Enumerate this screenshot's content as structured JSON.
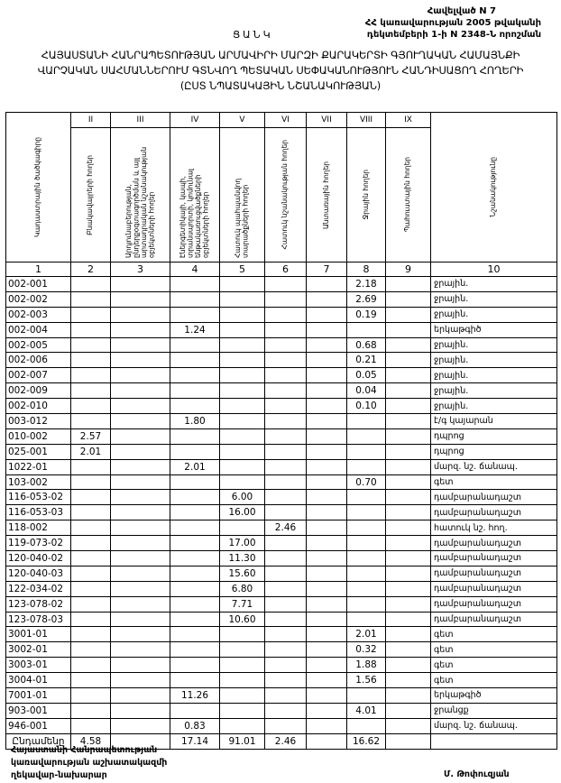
{
  "annex": {
    "line1": "Հավելված N 7",
    "line2": "ՀՀ կառավարության 2005 թվականի",
    "line3": "դեկտեմբերի 1-ի N 2348-Ն որոշման"
  },
  "heading": "ՑԱՆԿ",
  "title": {
    "line1": "ՀԱՅԱՍՏԱՆԻ ՀԱՆՐԱՊԵՏՈՒԹՅԱՆ ԱՐՄԱՎԻՐԻ ՄԱՐԶԻ ՔԱՐԱԿԵՐՏԻ ԳՅՈՒՂԱԿԱՆ ՀԱՄԱՅՆՔԻ",
    "line2": "ՎԱՐՉԱԿԱՆ ՍԱՀՄԱՆՆԵՐՈՒՄ ԳՏՆՎՈՂ ՊԵՏԱԿԱՆ ՍԵՓԱԿԱՆՈՒԹՅՈՒՆ ՀԱՆԴԻՍԱՑՈՂ ՀՈՂԵՐԻ",
    "line3": "(ԸՍՏ ՆՊԱՏԱԿԱՅԻՆ ՆՇԱՆԱԿՈՒԹՅԱՆ)"
  },
  "table": {
    "roman": [
      "",
      "II",
      "III",
      "IV",
      "V",
      "VI",
      "VII",
      "VIII",
      "IX",
      ""
    ],
    "headers": [
      "Կադաստրային ծածկագիրը",
      "Բնակավայրերի հողեր",
      "Արդյունաբերության, ընդերքօգտագործման և այլ արտադրական նշանակության օբյեկտների հողեր",
      "Էներգետիկայի, կապի, տրանսպորտի, կոմունալ ենթակառուցվածքների օբյեկտների հողեր",
      "Հատուկ պահպանվող տարածքների հողեր",
      "Հատուկ նշանակության հողեր",
      "Անտառային հողեր",
      "Ջրային հողեր",
      "Պահուստային հողեր",
      "Նշանակությունը"
    ],
    "numbers": [
      "1",
      "2",
      "3",
      "4",
      "5",
      "6",
      "7",
      "8",
      "9",
      "10"
    ],
    "rows": [
      {
        "code": "002-001",
        "values": [
          "",
          "",
          "",
          "",
          "",
          "",
          "2.18",
          ""
        ],
        "purpose": "ջրային."
      },
      {
        "code": "002-002",
        "values": [
          "",
          "",
          "",
          "",
          "",
          "",
          "2.69",
          ""
        ],
        "purpose": "ջրային."
      },
      {
        "code": "002-003",
        "values": [
          "",
          "",
          "",
          "",
          "",
          "",
          "0.19",
          ""
        ],
        "purpose": "ջրային."
      },
      {
        "code": "002-004",
        "values": [
          "",
          "",
          "1.24",
          "",
          "",
          "",
          "",
          ""
        ],
        "purpose": "երկաթգիծ"
      },
      {
        "code": "002-005",
        "values": [
          "",
          "",
          "",
          "",
          "",
          "",
          "0.68",
          ""
        ],
        "purpose": "ջրային."
      },
      {
        "code": "002-006",
        "values": [
          "",
          "",
          "",
          "",
          "",
          "",
          "0.21",
          ""
        ],
        "purpose": "ջրային."
      },
      {
        "code": "002-007",
        "values": [
          "",
          "",
          "",
          "",
          "",
          "",
          "0.05",
          ""
        ],
        "purpose": "ջրային."
      },
      {
        "code": "002-009",
        "values": [
          "",
          "",
          "",
          "",
          "",
          "",
          "0.04",
          ""
        ],
        "purpose": "ջրային."
      },
      {
        "code": "002-010",
        "values": [
          "",
          "",
          "",
          "",
          "",
          "",
          "0.10",
          ""
        ],
        "purpose": "ջրային."
      },
      {
        "code": "003-012",
        "values": [
          "",
          "",
          "1.80",
          "",
          "",
          "",
          "",
          ""
        ],
        "purpose": "է/գ կայարան"
      },
      {
        "code": "010-002",
        "values": [
          "2.57",
          "",
          "",
          "",
          "",
          "",
          "",
          ""
        ],
        "purpose": "դպրոց"
      },
      {
        "code": "025-001",
        "values": [
          "2.01",
          "",
          "",
          "",
          "",
          "",
          "",
          ""
        ],
        "purpose": "դպրոց"
      },
      {
        "code": "1022-01",
        "values": [
          "",
          "",
          "2.01",
          "",
          "",
          "",
          "",
          ""
        ],
        "purpose": "մարզ. նշ. ճանապ."
      },
      {
        "code": "103-002",
        "values": [
          "",
          "",
          "",
          "",
          "",
          "",
          "0.70",
          ""
        ],
        "purpose": "գետ"
      },
      {
        "code": "116-053-02",
        "values": [
          "",
          "",
          "",
          "6.00",
          "",
          "",
          "",
          ""
        ],
        "purpose": "դամբարանադաշտ"
      },
      {
        "code": "116-053-03",
        "values": [
          "",
          "",
          "",
          "16.00",
          "",
          "",
          "",
          ""
        ],
        "purpose": "դամբարանադաշտ"
      },
      {
        "code": "118-002",
        "values": [
          "",
          "",
          "",
          "",
          "2.46",
          "",
          "",
          ""
        ],
        "purpose": "հատուկ նշ. հող."
      },
      {
        "code": "119-073-02",
        "values": [
          "",
          "",
          "",
          "17.00",
          "",
          "",
          "",
          ""
        ],
        "purpose": "դամբարանադաշտ"
      },
      {
        "code": "120-040-02",
        "values": [
          "",
          "",
          "",
          "11.30",
          "",
          "",
          "",
          ""
        ],
        "purpose": "դամբարանադաշտ"
      },
      {
        "code": "120-040-03",
        "values": [
          "",
          "",
          "",
          "15.60",
          "",
          "",
          "",
          ""
        ],
        "purpose": "դամբարանադաշտ"
      },
      {
        "code": "122-034-02",
        "values": [
          "",
          "",
          "",
          "6.80",
          "",
          "",
          "",
          ""
        ],
        "purpose": "դամբարանադաշտ"
      },
      {
        "code": "123-078-02",
        "values": [
          "",
          "",
          "",
          "7.71",
          "",
          "",
          "",
          ""
        ],
        "purpose": "դամբարանադաշտ"
      },
      {
        "code": "123-078-03",
        "values": [
          "",
          "",
          "",
          "10.60",
          "",
          "",
          "",
          ""
        ],
        "purpose": "դամբարանադաշտ"
      },
      {
        "code": "3001-01",
        "values": [
          "",
          "",
          "",
          "",
          "",
          "",
          "2.01",
          ""
        ],
        "purpose": "գետ"
      },
      {
        "code": "3002-01",
        "values": [
          "",
          "",
          "",
          "",
          "",
          "",
          "0.32",
          ""
        ],
        "purpose": "գետ"
      },
      {
        "code": "3003-01",
        "values": [
          "",
          "",
          "",
          "",
          "",
          "",
          "1.88",
          ""
        ],
        "purpose": "գետ"
      },
      {
        "code": "3004-01",
        "values": [
          "",
          "",
          "",
          "",
          "",
          "",
          "1.56",
          ""
        ],
        "purpose": "գետ"
      },
      {
        "code": "7001-01",
        "values": [
          "",
          "",
          "11.26",
          "",
          "",
          "",
          "",
          ""
        ],
        "purpose": "երկաթգիծ"
      },
      {
        "code": "903-001",
        "values": [
          "",
          "",
          "",
          "",
          "",
          "",
          "4.01",
          ""
        ],
        "purpose": "ջրանցք"
      },
      {
        "code": "946-001",
        "values": [
          "",
          "",
          "0.83",
          "",
          "",
          "",
          "",
          ""
        ],
        "purpose": "մարզ. նշ. ճանապ."
      }
    ],
    "total": {
      "label": "Ընդամենը",
      "values": [
        "4.58",
        "",
        "17.14",
        "91.01",
        "2.46",
        "",
        "16.62",
        ""
      ],
      "purpose": ""
    }
  },
  "footer": {
    "line1": "Հայաստանի Հանրապետության",
    "line2": "կառավարության աշխատակազմի",
    "line3": "ղեկավար-նախարար",
    "signatory": "Մ. Թոփուզյան"
  }
}
